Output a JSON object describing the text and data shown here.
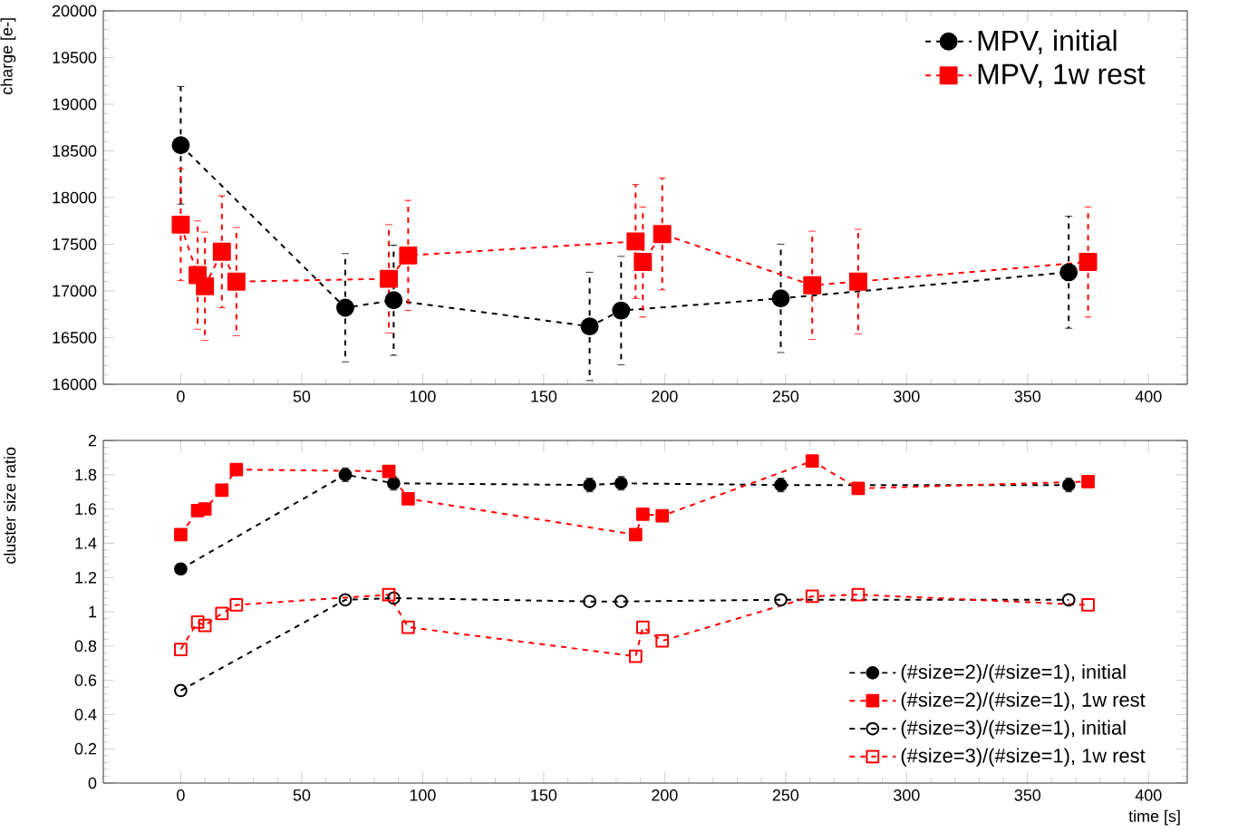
{
  "chart_data": [
    {
      "type": "line",
      "ylabel": "charge  [e-]",
      "xlim": [
        -32,
        416
      ],
      "ylim": [
        16000,
        20000
      ],
      "xticks": [
        0,
        50,
        100,
        150,
        200,
        250,
        300,
        350,
        400
      ],
      "yticks": [
        16000,
        16500,
        17000,
        17500,
        18000,
        18500,
        19000,
        19500,
        20000
      ],
      "grid": false,
      "legend": "top right",
      "line_style": "dashed",
      "series": [
        {
          "name": "MPV, initial",
          "color": "#000000",
          "marker": "circle",
          "x": [
            0,
            68,
            88,
            169,
            182,
            248,
            367
          ],
          "values": [
            18560,
            16820,
            16900,
            16620,
            16790,
            16920,
            17200
          ],
          "errors": [
            630,
            580,
            590,
            580,
            580,
            580,
            600
          ]
        },
        {
          "name": "MPV, 1w rest",
          "color": "#ff0000",
          "marker": "square",
          "x": [
            0,
            7,
            10,
            17,
            23,
            86,
            94,
            188,
            191,
            199,
            261,
            280,
            375
          ],
          "values": [
            17710,
            17170,
            17050,
            17420,
            17100,
            17130,
            17380,
            17530,
            17310,
            17610,
            17060,
            17100,
            17310
          ],
          "errors": [
            600,
            580,
            580,
            600,
            580,
            580,
            590,
            610,
            590,
            600,
            580,
            560,
            590
          ]
        }
      ]
    },
    {
      "type": "line",
      "xlabel": "time  [s]",
      "ylabel": "cluster size ratio",
      "xlim": [
        -32,
        416
      ],
      "ylim": [
        0,
        2
      ],
      "xticks": [
        0,
        50,
        100,
        150,
        200,
        250,
        300,
        350,
        400
      ],
      "yticks": [
        0,
        0.2,
        0.4,
        0.6,
        0.8,
        1,
        1.2,
        1.4,
        1.6,
        1.8,
        2
      ],
      "grid": false,
      "legend": "bottom right",
      "line_style": "dashed",
      "series": [
        {
          "name": "(#size=2)/(#size=1), initial",
          "color": "#000000",
          "marker": "circle",
          "x": [
            0,
            68,
            88,
            169,
            182,
            248,
            367
          ],
          "values": [
            1.25,
            1.8,
            1.75,
            1.74,
            1.75,
            1.74,
            1.74
          ],
          "errors": [
            0.02,
            0.04,
            0.04,
            0.04,
            0.04,
            0.04,
            0.04
          ]
        },
        {
          "name": "(#size=2)/(#size=1), 1w rest",
          "color": "#ff0000",
          "marker": "square",
          "x": [
            0,
            7,
            10,
            17,
            23,
            86,
            94,
            188,
            191,
            199,
            261,
            280,
            375
          ],
          "values": [
            1.45,
            1.59,
            1.6,
            1.71,
            1.83,
            1.82,
            1.66,
            1.45,
            1.57,
            1.56,
            1.88,
            1.72,
            1.76
          ],
          "errors": [
            0.03,
            0.03,
            0.03,
            0.03,
            0.03,
            0.03,
            0.03,
            0.03,
            0.03,
            0.03,
            0.03,
            0.03,
            0.03
          ]
        },
        {
          "name": "(#size=3)/(#size=1), initial",
          "color": "#000000",
          "marker": "circle",
          "x": [
            0,
            68,
            88,
            169,
            182,
            248,
            367
          ],
          "values": [
            0.54,
            1.07,
            1.08,
            1.06,
            1.06,
            1.07,
            1.07
          ]
        },
        {
          "name": "(#size=3)/(#size=1), 1w rest",
          "color": "#ff0000",
          "marker": "square",
          "x": [
            0,
            7,
            10,
            17,
            23,
            86,
            94,
            188,
            191,
            199,
            261,
            280,
            375
          ],
          "values": [
            0.78,
            0.94,
            0.92,
            0.99,
            1.04,
            1.1,
            0.91,
            0.74,
            0.91,
            0.83,
            1.09,
            1.1,
            1.04
          ]
        }
      ]
    }
  ]
}
